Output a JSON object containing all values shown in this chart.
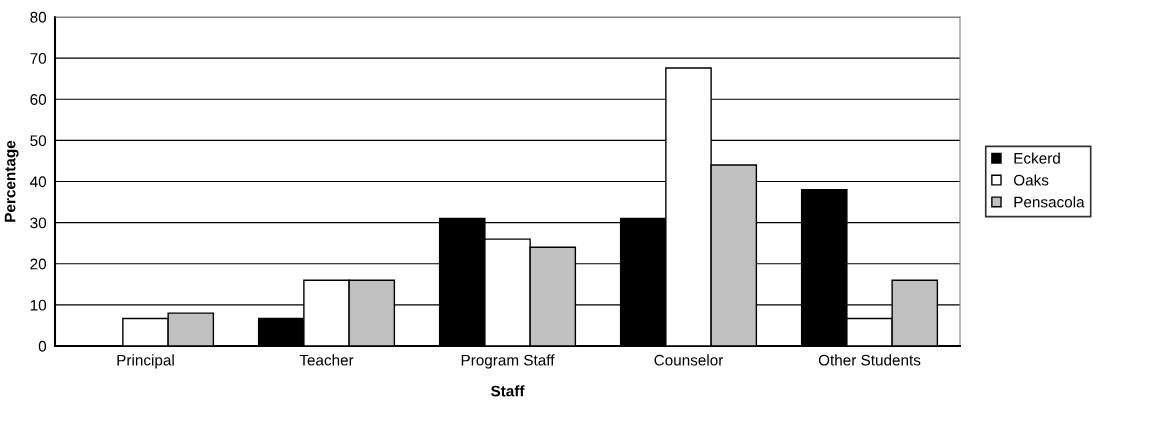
{
  "chart_data": {
    "type": "bar",
    "xlabel": "Staff",
    "ylabel": "Percentage",
    "categories": [
      "Principal",
      "Teacher",
      "Program Staff",
      "Counselor",
      "Other Students"
    ],
    "series": [
      {
        "name": "Eckerd",
        "color": "#000000",
        "values": [
          0,
          6.7,
          31,
          31,
          38
        ]
      },
      {
        "name": "Oaks",
        "color": "#ffffff",
        "values": [
          6.7,
          16,
          26,
          67.6,
          6.7
        ]
      },
      {
        "name": "Pensacola",
        "color": "#c0c0c0",
        "values": [
          8,
          16,
          24,
          44,
          16
        ]
      }
    ],
    "ylim": [
      0,
      80
    ],
    "yticks": [
      0,
      10,
      20,
      30,
      40,
      50,
      60,
      70,
      80
    ],
    "grid": "y",
    "legend": "right"
  }
}
